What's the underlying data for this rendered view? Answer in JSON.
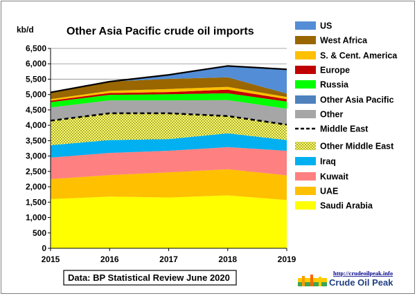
{
  "chart_data": {
    "type": "area",
    "stacked": true,
    "title": "Other Asia Pacific crude oil imports",
    "ylabel": "kb/d",
    "xlabel": "",
    "x": [
      2015,
      2016,
      2017,
      2018,
      2019
    ],
    "x_tick_labels": [
      "2015",
      "2016",
      "2017",
      "2018",
      "2019"
    ],
    "ylim": [
      0,
      6500
    ],
    "y_ticks": [
      0,
      500,
      1000,
      1500,
      2000,
      2500,
      3000,
      3500,
      4000,
      4500,
      5000,
      5500,
      6000,
      6500
    ],
    "y_tick_labels": [
      "0",
      "500",
      "1,000",
      "1,500",
      "2,000",
      "2,500",
      "3,000",
      "3,500",
      "4,000",
      "4,500",
      "5,000",
      "5,500",
      "6,000",
      "6,500"
    ],
    "grid": "horizontal",
    "legend_position": "right",
    "series": [
      {
        "name": "Saudi Arabia",
        "color": "#ffff00",
        "values": [
          1600,
          1680,
          1650,
          1720,
          1570
        ]
      },
      {
        "name": "UAE",
        "color": "#ffc000",
        "values": [
          650,
          700,
          820,
          850,
          800
        ]
      },
      {
        "name": "Kuwait",
        "color": "#ff8080",
        "values": [
          700,
          720,
          700,
          720,
          800
        ]
      },
      {
        "name": "Iraq",
        "color": "#00b0f0",
        "values": [
          400,
          420,
          380,
          450,
          350
        ]
      },
      {
        "name": "Other Middle East",
        "color": "#ffff66",
        "pattern": "dotted",
        "values": [
          800,
          870,
          840,
          560,
          500
        ]
      },
      {
        "name": "Other",
        "color": "#a6a6a6",
        "values": [
          430,
          420,
          420,
          520,
          520
        ]
      },
      {
        "name": "Other Asia Pacific",
        "color": "#4f81bd",
        "values": [
          0,
          0,
          0,
          0,
          0
        ]
      },
      {
        "name": "Russia",
        "color": "#00ff00",
        "values": [
          170,
          180,
          200,
          220,
          230
        ]
      },
      {
        "name": "Europe",
        "color": "#c00000",
        "values": [
          50,
          60,
          70,
          120,
          80
        ]
      },
      {
        "name": "S. & Cent. America",
        "color": "#ffc000",
        "values": [
          50,
          70,
          100,
          90,
          70
        ]
      },
      {
        "name": "West Africa",
        "color": "#996600",
        "values": [
          220,
          300,
          330,
          310,
          110
        ]
      },
      {
        "name": "US",
        "color": "#538dd5",
        "values": [
          0,
          0,
          130,
          370,
          790
        ]
      }
    ],
    "overlay_line": {
      "name": "Middle East",
      "style": "dashed",
      "color": "#000000",
      "values": [
        4150,
        4390,
        4390,
        4300,
        4020
      ]
    },
    "total_line": {
      "color": "#000000",
      "values": [
        5070,
        5420,
        5640,
        5930,
        5820
      ]
    },
    "legend": [
      {
        "name": "US",
        "type": "area"
      },
      {
        "name": "West Africa",
        "type": "area"
      },
      {
        "name": "S. & Cent. America",
        "type": "area"
      },
      {
        "name": "Europe",
        "type": "area"
      },
      {
        "name": "Russia",
        "type": "area"
      },
      {
        "name": "Other Asia Pacific",
        "type": "area"
      },
      {
        "name": "Other",
        "type": "area"
      },
      {
        "name": "Middle East",
        "type": "dashed-line"
      },
      {
        "name": "Other Middle East",
        "type": "area"
      },
      {
        "name": "Iraq",
        "type": "area"
      },
      {
        "name": "Kuwait",
        "type": "area"
      },
      {
        "name": "UAE",
        "type": "area"
      },
      {
        "name": "Saudi Arabia",
        "type": "area"
      }
    ]
  },
  "source_note": "Data: BP Statistical Review June 2020",
  "logo": {
    "url_text": "http://crudeoilpeak.info",
    "name_text": "Crude Oil Peak"
  }
}
